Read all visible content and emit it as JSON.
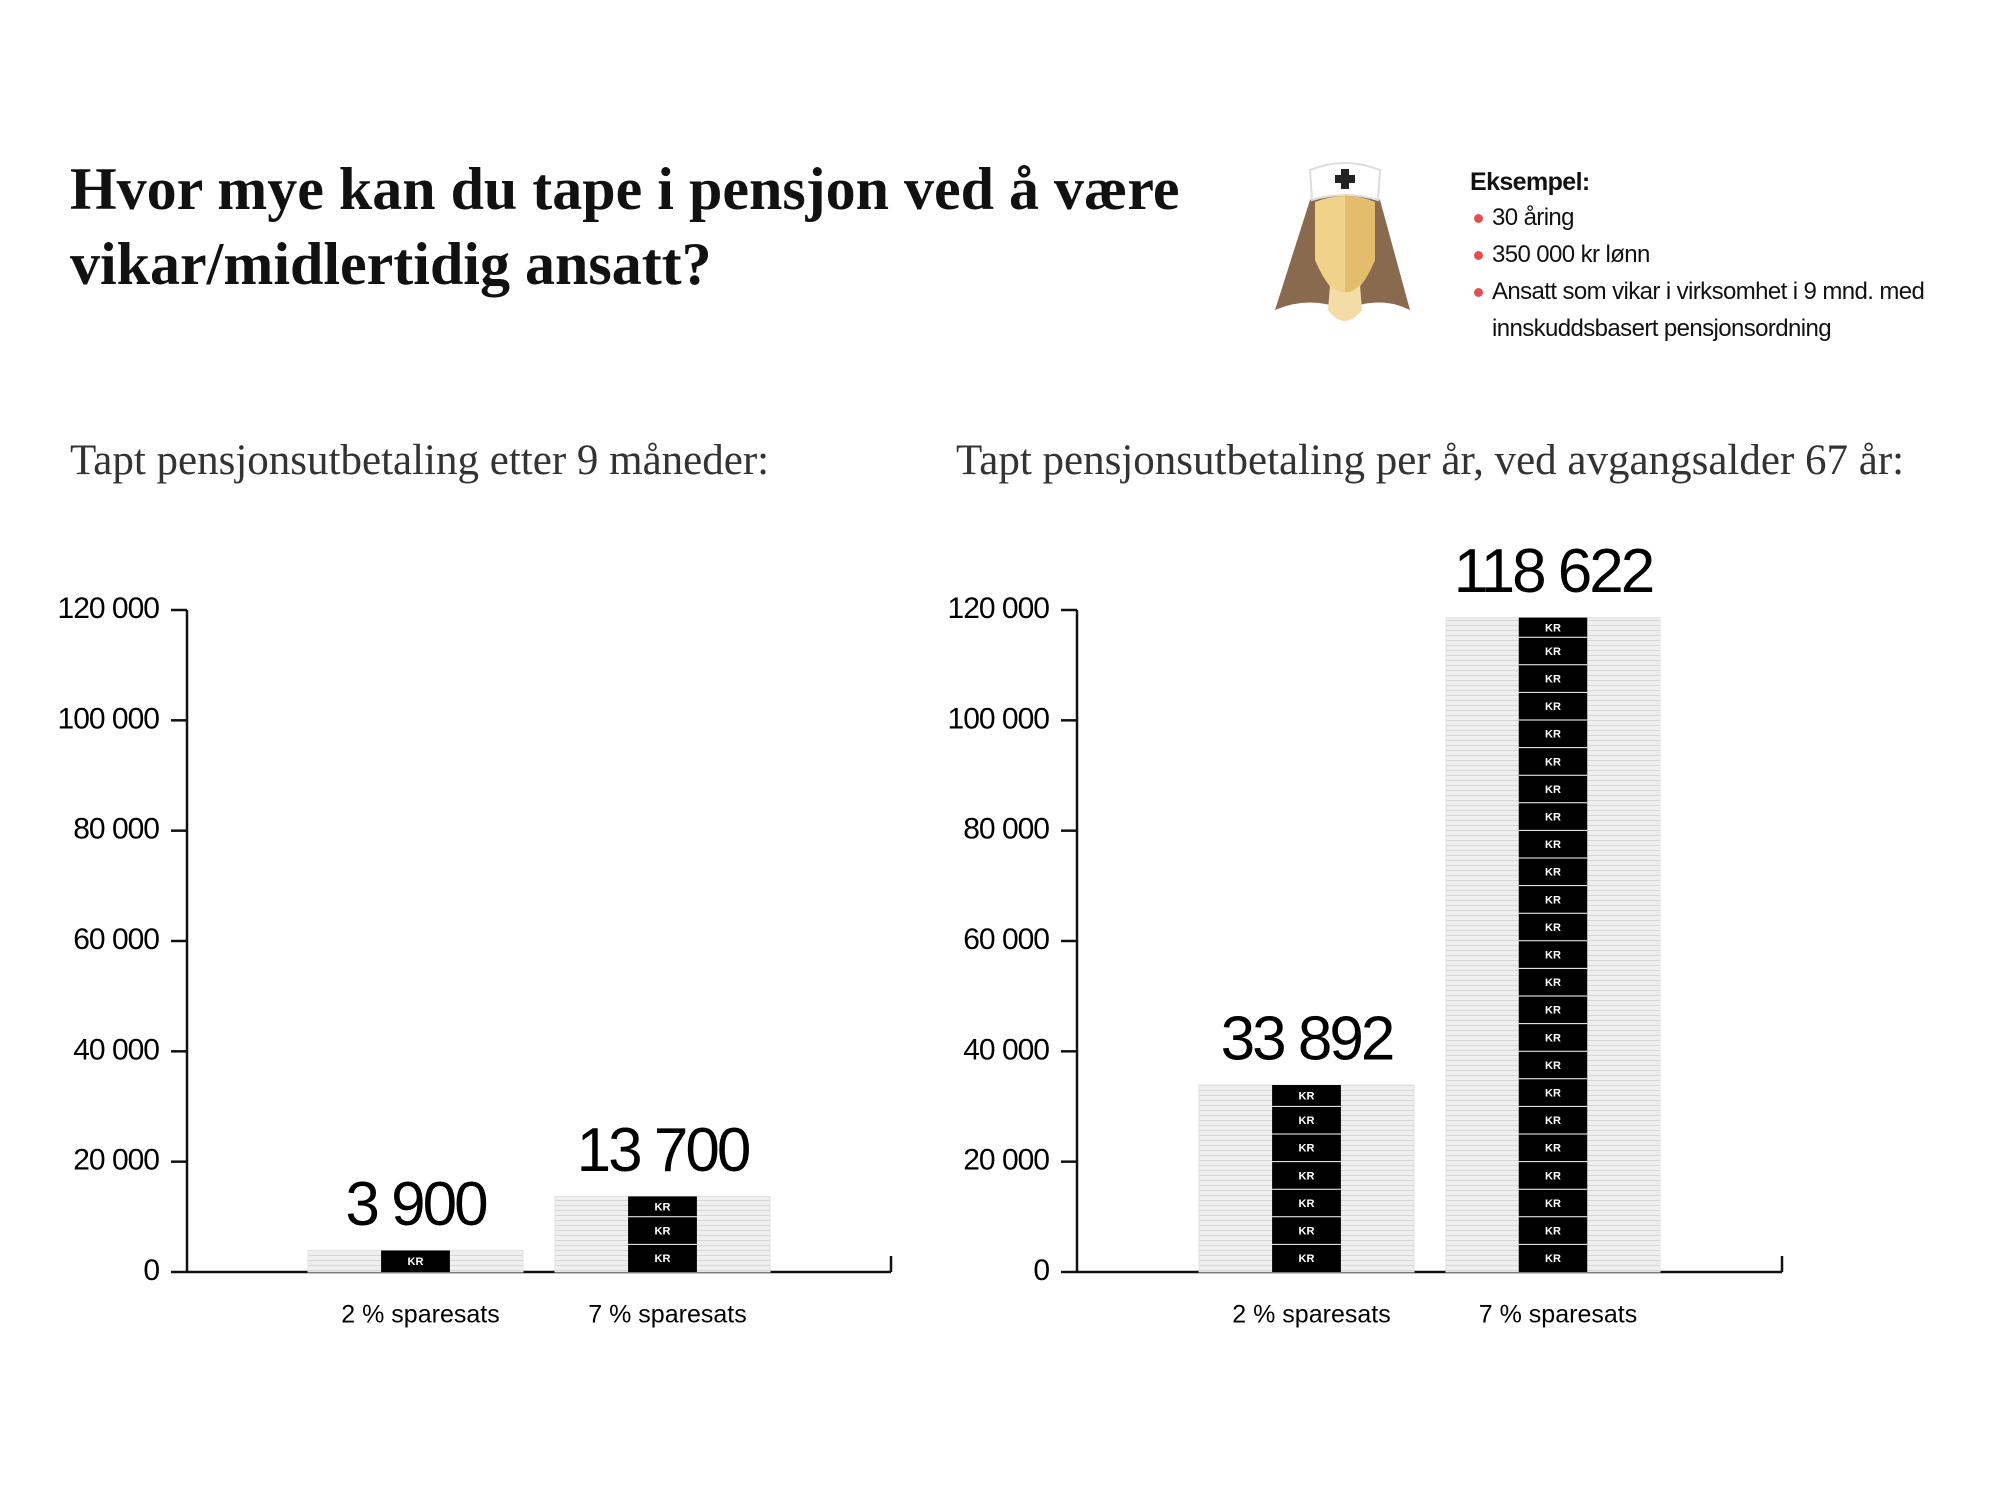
{
  "header": {
    "title": "Hvor mye kan du tape i pensjon ved å være vikar/midlertidig ansatt?"
  },
  "example": {
    "heading": "Eksempel:",
    "items": [
      "30 åring",
      "350 000 kr lønn",
      "Ansatt som vikar i virksomhet i 9 mnd. med innskuddsbasert pensjonsordning"
    ]
  },
  "chart_data": [
    {
      "type": "bar",
      "title": "Tapt pensjonsutbetaling etter 9 måneder:",
      "categories": [
        "2 % sparesats",
        "7 % sparesats"
      ],
      "values": [
        3900,
        13700
      ],
      "value_labels": [
        "3 900",
        "13 700"
      ],
      "unit_label": "KR",
      "color": "#000000",
      "ylim": [
        0,
        120000
      ],
      "yticks": [
        0,
        {
          "value": 20000,
          "label": "20 000"
        },
        {
          "value": 40000,
          "label": "40 000"
        },
        {
          "value": 60000,
          "label": "60 000"
        },
        {
          "value": 80000,
          "label": "80 000"
        },
        {
          "value": 100000,
          "label": "100 000"
        },
        {
          "value": 120000,
          "label": "120 000"
        }
      ]
    },
    {
      "type": "bar",
      "title": "Tapt pensjonsutbetaling per år, ved avgangsalder 67 år:",
      "categories": [
        "2 % sparesats",
        "7 % sparesats"
      ],
      "values": [
        33892,
        118622
      ],
      "value_labels": [
        "33 892",
        "118 622"
      ],
      "unit_label": "KR",
      "color": "#000000",
      "ylim": [
        0,
        120000
      ],
      "yticks": [
        0,
        {
          "value": 20000,
          "label": "20 000"
        },
        {
          "value": 40000,
          "label": "40 000"
        },
        {
          "value": 60000,
          "label": "60 000"
        },
        {
          "value": 80000,
          "label": "80 000"
        },
        {
          "value": 100000,
          "label": "100 000"
        },
        {
          "value": 120000,
          "label": "120 000"
        }
      ]
    }
  ]
}
